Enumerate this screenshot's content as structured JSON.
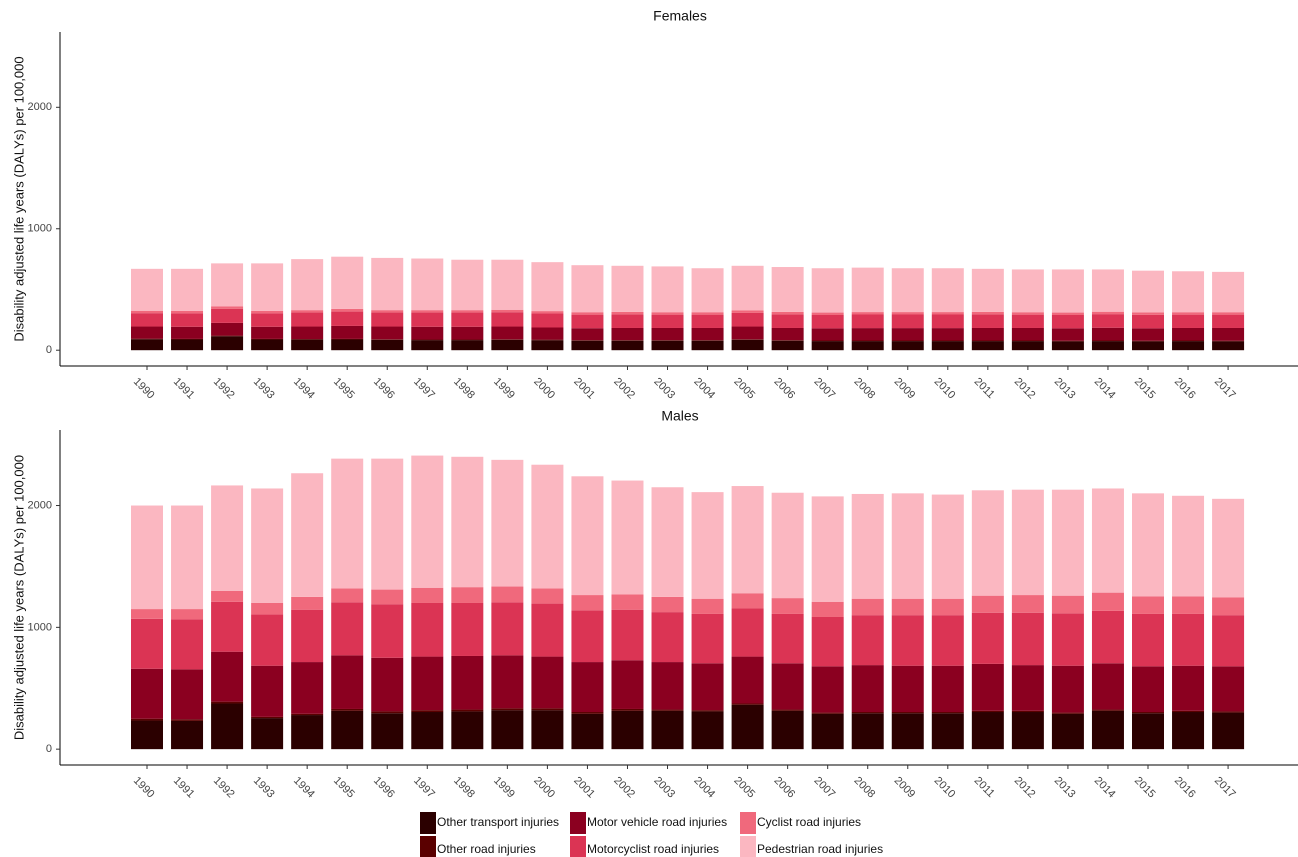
{
  "chart_data": [
    {
      "type": "stacked_bar",
      "title": "Females",
      "y_label": "Disability adjusted life years (DALYs) per 100,000",
      "categories": [
        "1990",
        "1991",
        "1992",
        "1993",
        "1994",
        "1995",
        "1996",
        "1997",
        "1998",
        "1999",
        "2000",
        "2001",
        "2002",
        "2003",
        "2004",
        "2005",
        "2006",
        "2007",
        "2008",
        "2009",
        "2010",
        "2011",
        "2012",
        "2013",
        "2014",
        "2015",
        "2016",
        "2017"
      ],
      "ylim": [
        -130,
        2620
      ],
      "yticks": [
        0,
        1000,
        2000
      ],
      "series": [
        {
          "name": "Other transport injuries",
          "color": "#2b0000",
          "values": [
            90,
            88,
            115,
            88,
            87,
            88,
            85,
            83,
            83,
            85,
            82,
            78,
            78,
            78,
            78,
            85,
            78,
            75,
            75,
            75,
            75,
            75,
            75,
            73,
            75,
            73,
            75,
            73
          ]
        },
        {
          "name": "Other road injuries",
          "color": "#5a0000",
          "values": [
            5,
            5,
            5,
            5,
            5,
            5,
            5,
            5,
            5,
            5,
            5,
            5,
            5,
            5,
            5,
            5,
            5,
            5,
            5,
            5,
            5,
            5,
            5,
            5,
            5,
            5,
            5,
            5
          ]
        },
        {
          "name": "Motor vehicle road injuries",
          "color": "#8b0020",
          "values": [
            100,
            100,
            105,
            100,
            103,
            107,
            105,
            105,
            105,
            105,
            100,
            98,
            100,
            100,
            100,
            105,
            100,
            100,
            102,
            102,
            102,
            103,
            103,
            102,
            105,
            102,
            103,
            105
          ]
        },
        {
          "name": "Motorcyclist road injuries",
          "color": "#db3454",
          "values": [
            110,
            110,
            115,
            110,
            115,
            118,
            115,
            117,
            117,
            118,
            115,
            112,
            112,
            110,
            110,
            112,
            112,
            110,
            112,
            112,
            112,
            112,
            110,
            110,
            112,
            112,
            110,
            110
          ]
        },
        {
          "name": "Cyclist road injuries",
          "color": "#f0697c",
          "values": [
            20,
            20,
            20,
            20,
            20,
            22,
            20,
            20,
            20,
            20,
            20,
            20,
            20,
            20,
            20,
            20,
            20,
            20,
            20,
            20,
            20,
            20,
            20,
            20,
            20,
            20,
            20,
            20
          ]
        },
        {
          "name": "Pedestrian road injuries",
          "color": "#fbb7c1",
          "values": [
            345,
            347,
            355,
            392,
            420,
            430,
            430,
            425,
            415,
            412,
            403,
            387,
            380,
            377,
            362,
            368,
            370,
            365,
            366,
            361,
            361,
            355,
            352,
            355,
            348,
            343,
            337,
            332
          ]
        }
      ]
    },
    {
      "type": "stacked_bar",
      "title": "Males",
      "y_label": "Disability adjusted life years (DALYs) per 100,000",
      "categories": [
        "1990",
        "1991",
        "1992",
        "1993",
        "1994",
        "1995",
        "1996",
        "1997",
        "1998",
        "1999",
        "2000",
        "2001",
        "2002",
        "2003",
        "2004",
        "2005",
        "2006",
        "2007",
        "2008",
        "2009",
        "2010",
        "2011",
        "2012",
        "2013",
        "2014",
        "2015",
        "2016",
        "2017"
      ],
      "ylim": [
        -130,
        2620
      ],
      "yticks": [
        0,
        1000,
        2000
      ],
      "series": [
        {
          "values": [
            235,
            232,
            375,
            255,
            280,
            315,
            295,
            305,
            310,
            320,
            320,
            290,
            315,
            315,
            310,
            365,
            315,
            290,
            295,
            295,
            295,
            305,
            305,
            290,
            315,
            295,
            305,
            300
          ]
        },
        {
          "values": [
            15,
            13,
            15,
            10,
            10,
            15,
            15,
            15,
            15,
            15,
            15,
            15,
            15,
            10,
            10,
            10,
            10,
            10,
            10,
            10,
            10,
            10,
            10,
            10,
            10,
            10,
            10,
            10
          ]
        },
        {
          "values": [
            410,
            410,
            410,
            420,
            425,
            440,
            440,
            440,
            440,
            435,
            425,
            410,
            400,
            390,
            385,
            385,
            380,
            380,
            385,
            380,
            380,
            385,
            375,
            385,
            380,
            375,
            370,
            370
          ]
        },
        {
          "values": [
            410,
            410,
            410,
            420,
            430,
            435,
            440,
            440,
            435,
            435,
            435,
            425,
            415,
            410,
            405,
            395,
            405,
            405,
            410,
            415,
            415,
            420,
            430,
            430,
            430,
            430,
            425,
            420
          ]
        },
        {
          "values": [
            80,
            85,
            90,
            95,
            105,
            115,
            120,
            125,
            130,
            130,
            125,
            125,
            125,
            125,
            125,
            125,
            130,
            125,
            135,
            135,
            135,
            140,
            145,
            145,
            150,
            145,
            145,
            145
          ]
        },
        {
          "values": [
            850,
            850,
            865,
            940,
            1015,
            1065,
            1075,
            1085,
            1070,
            1040,
            1015,
            975,
            935,
            900,
            875,
            880,
            865,
            865,
            860,
            865,
            855,
            865,
            865,
            870,
            855,
            845,
            825,
            810
          ]
        }
      ]
    }
  ]
}
